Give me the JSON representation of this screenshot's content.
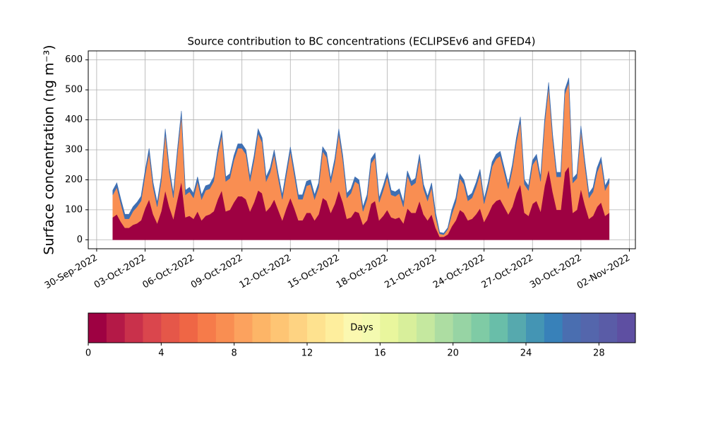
{
  "chart_data": {
    "type": "stacked_area",
    "title": "Source contribution to BC concentrations (ECLIPSEv6 and GFED4)",
    "y_label": "Surface concentration (ng m⁻³)",
    "x": [
      "2022-10-01T00:00",
      "2022-10-01T06:00",
      "2022-10-01T12:00",
      "2022-10-01T18:00",
      "2022-10-02T00:00",
      "2022-10-02T06:00",
      "2022-10-02T12:00",
      "2022-10-02T18:00",
      "2022-10-03T00:00",
      "2022-10-03T06:00",
      "2022-10-03T12:00",
      "2022-10-03T18:00",
      "2022-10-04T00:00",
      "2022-10-04T06:00",
      "2022-10-04T12:00",
      "2022-10-04T18:00",
      "2022-10-05T00:00",
      "2022-10-05T06:00",
      "2022-10-05T12:00",
      "2022-10-05T18:00",
      "2022-10-06T00:00",
      "2022-10-06T06:00",
      "2022-10-06T12:00",
      "2022-10-06T18:00",
      "2022-10-07T00:00",
      "2022-10-07T06:00",
      "2022-10-07T12:00",
      "2022-10-07T18:00",
      "2022-10-08T00:00",
      "2022-10-08T06:00",
      "2022-10-08T12:00",
      "2022-10-08T18:00",
      "2022-10-09T00:00",
      "2022-10-09T06:00",
      "2022-10-09T12:00",
      "2022-10-09T18:00",
      "2022-10-10T00:00",
      "2022-10-10T06:00",
      "2022-10-10T12:00",
      "2022-10-10T18:00",
      "2022-10-11T00:00",
      "2022-10-11T06:00",
      "2022-10-11T12:00",
      "2022-10-11T18:00",
      "2022-10-12T00:00",
      "2022-10-12T06:00",
      "2022-10-12T12:00",
      "2022-10-12T18:00",
      "2022-10-13T00:00",
      "2022-10-13T06:00",
      "2022-10-13T12:00",
      "2022-10-13T18:00",
      "2022-10-14T00:00",
      "2022-10-14T06:00",
      "2022-10-14T12:00",
      "2022-10-14T18:00",
      "2022-10-15T00:00",
      "2022-10-15T06:00",
      "2022-10-15T12:00",
      "2022-10-15T18:00",
      "2022-10-16T00:00",
      "2022-10-16T06:00",
      "2022-10-16T12:00",
      "2022-10-16T18:00",
      "2022-10-17T00:00",
      "2022-10-17T06:00",
      "2022-10-17T12:00",
      "2022-10-17T18:00",
      "2022-10-18T00:00",
      "2022-10-18T06:00",
      "2022-10-18T12:00",
      "2022-10-18T18:00",
      "2022-10-19T00:00",
      "2022-10-19T06:00",
      "2022-10-19T12:00",
      "2022-10-19T18:00",
      "2022-10-20T00:00",
      "2022-10-20T06:00",
      "2022-10-20T12:00",
      "2022-10-20T18:00",
      "2022-10-21T00:00",
      "2022-10-21T06:00",
      "2022-10-21T12:00",
      "2022-10-21T18:00",
      "2022-10-22T00:00",
      "2022-10-22T06:00",
      "2022-10-22T12:00",
      "2022-10-22T18:00",
      "2022-10-23T00:00",
      "2022-10-23T06:00",
      "2022-10-23T12:00",
      "2022-10-23T18:00",
      "2022-10-24T00:00",
      "2022-10-24T06:00",
      "2022-10-24T12:00",
      "2022-10-24T18:00",
      "2022-10-25T00:00",
      "2022-10-25T06:00",
      "2022-10-25T12:00",
      "2022-10-25T18:00",
      "2022-10-26T00:00",
      "2022-10-26T06:00",
      "2022-10-26T12:00",
      "2022-10-26T18:00",
      "2022-10-27T00:00",
      "2022-10-27T06:00",
      "2022-10-27T12:00",
      "2022-10-27T18:00",
      "2022-10-28T00:00",
      "2022-10-28T06:00",
      "2022-10-28T12:00",
      "2022-10-28T18:00",
      "2022-10-29T00:00",
      "2022-10-29T06:00",
      "2022-10-29T12:00",
      "2022-10-29T18:00",
      "2022-10-30T00:00",
      "2022-10-30T06:00",
      "2022-10-30T12:00",
      "2022-10-30T18:00",
      "2022-10-31T00:00",
      "2022-10-31T06:00",
      "2022-10-31T12:00",
      "2022-10-31T18:00"
    ],
    "series": [
      {
        "color": "#9e0142",
        "values": [
          75,
          85,
          60,
          40,
          40,
          50,
          55,
          65,
          105,
          135,
          85,
          55,
          95,
          165,
          110,
          70,
          135,
          195,
          75,
          80,
          70,
          95,
          65,
          80,
          85,
          95,
          135,
          165,
          95,
          100,
          125,
          145,
          145,
          135,
          95,
          125,
          165,
          155,
          95,
          110,
          135,
          100,
          65,
          105,
          140,
          105,
          65,
          65,
          90,
          90,
          65,
          85,
          140,
          130,
          90,
          120,
          165,
          125,
          70,
          75,
          95,
          90,
          50,
          65,
          120,
          130,
          65,
          80,
          100,
          75,
          70,
          75,
          55,
          105,
          90,
          90,
          130,
          85,
          65,
          85,
          40,
          10,
          10,
          18,
          45,
          65,
          100,
          90,
          65,
          70,
          85,
          105,
          60,
          85,
          115,
          130,
          135,
          110,
          85,
          110,
          155,
          185,
          90,
          80,
          120,
          130,
          95,
          180,
          235,
          160,
          100,
          100,
          225,
          245,
          90,
          100,
          170,
          115,
          70,
          80,
          110,
          125,
          80,
          90
        ]
      },
      {
        "color": "#f98e52",
        "values": [
          75,
          90,
          60,
          30,
          30,
          45,
          55,
          65,
          110,
          155,
          90,
          55,
          100,
          190,
          115,
          70,
          150,
          220,
          75,
          80,
          70,
          100,
          70,
          85,
          85,
          100,
          150,
          185,
          100,
          105,
          140,
          160,
          160,
          150,
          100,
          140,
          190,
          170,
          100,
          115,
          150,
          105,
          70,
          110,
          155,
          110,
          70,
          70,
          90,
          95,
          70,
          90,
          155,
          145,
          100,
          135,
          190,
          140,
          70,
          80,
          100,
          95,
          45,
          70,
          135,
          145,
          60,
          85,
          110,
          75,
          75,
          80,
          55,
          110,
          90,
          100,
          140,
          85,
          65,
          90,
          35,
          10,
          7,
          17,
          40,
          60,
          105,
          95,
          65,
          70,
          90,
          115,
          60,
          90,
          130,
          140,
          145,
          115,
          85,
          125,
          170,
          210,
          95,
          85,
          130,
          140,
          100,
          205,
          275,
          175,
          110,
          110,
          260,
          280,
          100,
          105,
          195,
          130,
          70,
          80,
          115,
          135,
          85,
          100
        ]
      },
      {
        "color": "#3f6fb2",
        "values": [
          15,
          15,
          15,
          15,
          15,
          15,
          15,
          15,
          15,
          15,
          15,
          15,
          15,
          15,
          15,
          15,
          15,
          15,
          15,
          15,
          15,
          15,
          15,
          15,
          15,
          15,
          15,
          15,
          15,
          15,
          15,
          15,
          15,
          15,
          15,
          15,
          15,
          15,
          15,
          15,
          15,
          15,
          15,
          15,
          15,
          15,
          15,
          15,
          15,
          15,
          15,
          15,
          15,
          15,
          15,
          15,
          15,
          15,
          15,
          15,
          15,
          15,
          15,
          15,
          15,
          15,
          15,
          15,
          15,
          15,
          15,
          15,
          15,
          15,
          15,
          15,
          15,
          15,
          15,
          15,
          15,
          5,
          5,
          5,
          15,
          15,
          15,
          15,
          15,
          15,
          15,
          15,
          15,
          15,
          15,
          15,
          15,
          15,
          15,
          15,
          15,
          15,
          15,
          15,
          15,
          15,
          15,
          15,
          15,
          15,
          15,
          15,
          15,
          15,
          15,
          15,
          15,
          15,
          15,
          15,
          15,
          15,
          15,
          15
        ]
      }
    ],
    "xlim": [
      "2022-09-29T11:30",
      "2022-11-02T09:00"
    ],
    "xticks": [
      {
        "value": "2022-09-30T00:00",
        "label": "30-Sep-2022"
      },
      {
        "value": "2022-10-03T00:00",
        "label": "03-Oct-2022"
      },
      {
        "value": "2022-10-06T00:00",
        "label": "06-Oct-2022"
      },
      {
        "value": "2022-10-09T00:00",
        "label": "09-Oct-2022"
      },
      {
        "value": "2022-10-12T00:00",
        "label": "12-Oct-2022"
      },
      {
        "value": "2022-10-15T00:00",
        "label": "15-Oct-2022"
      },
      {
        "value": "2022-10-18T00:00",
        "label": "18-Oct-2022"
      },
      {
        "value": "2022-10-21T00:00",
        "label": "21-Oct-2022"
      },
      {
        "value": "2022-10-24T00:00",
        "label": "24-Oct-2022"
      },
      {
        "value": "2022-10-27T00:00",
        "label": "27-Oct-2022"
      },
      {
        "value": "2022-10-30T00:00",
        "label": "30-Oct-2022"
      },
      {
        "value": "2022-11-02T00:00",
        "label": "02-Nov-2022"
      }
    ],
    "ylim": [
      -30,
      630
    ],
    "yticks": [
      0,
      100,
      200,
      300,
      400,
      500,
      600
    ],
    "grid": true,
    "colorbar": {
      "label": "Days",
      "lim": [
        0,
        30
      ],
      "ticks": [
        0,
        4,
        8,
        12,
        16,
        20,
        24,
        28
      ],
      "colors": [
        "#9e0142",
        "#b41947",
        "#c9314b",
        "#da464d",
        "#e55749",
        "#ef6645",
        "#f67b4a",
        "#f98e52",
        "#fca25e",
        "#fdb567",
        "#fec574",
        "#fed382",
        "#fee28f",
        "#feee9d",
        "#fbf8b0",
        "#f4fab0",
        "#e9f69d",
        "#d8ef9b",
        "#c5e89f",
        "#addda2",
        "#97d4a4",
        "#7fcba5",
        "#69bea9",
        "#56a9ae",
        "#4495b4",
        "#3881b9",
        "#4a6eb0",
        "#5466ac",
        "#5a5ca7",
        "#5e4fa2"
      ]
    }
  }
}
